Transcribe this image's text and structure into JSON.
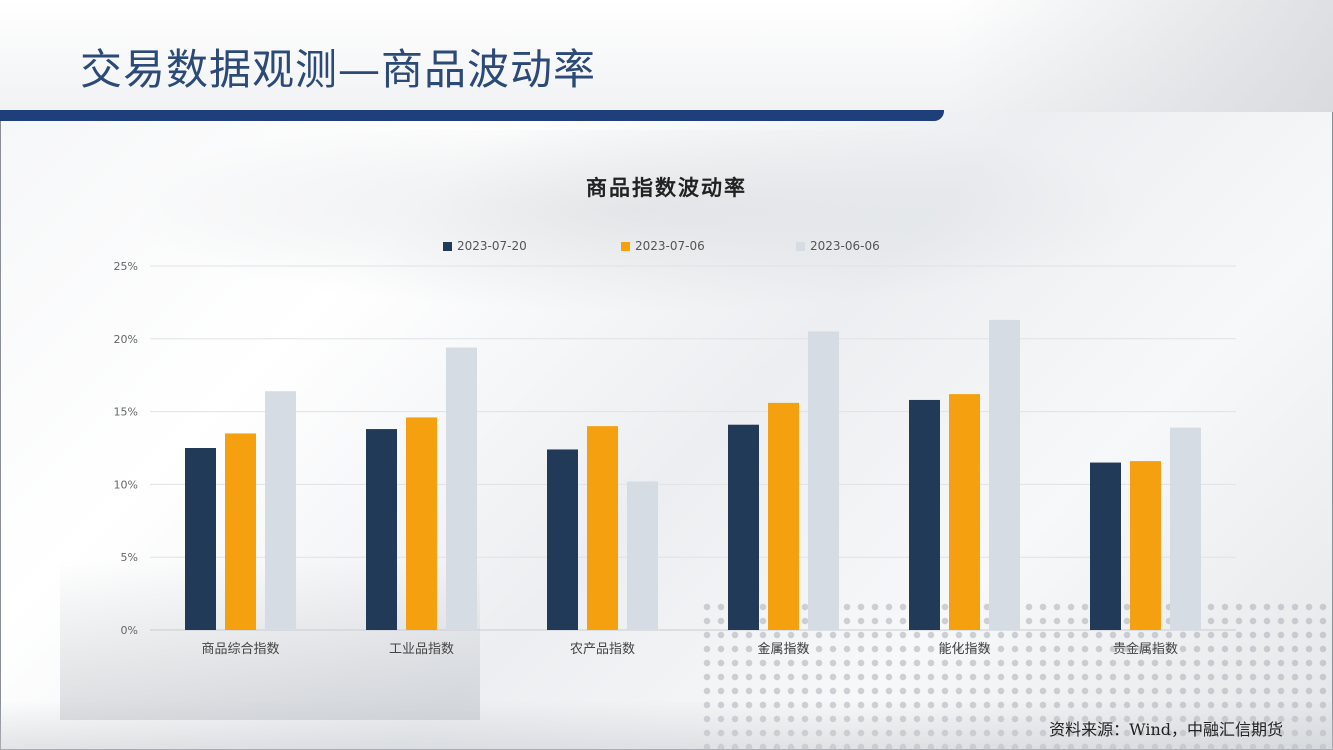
{
  "slide": {
    "title": "交易数据观测—商品波动率",
    "source": "资料来源：Wind，中融汇信期货"
  },
  "colors": {
    "title_bar": "#1f3f7a",
    "title_text": "#2c4a78"
  },
  "chart_data": {
    "type": "bar",
    "title": "商品指数波动率",
    "categories": [
      "商品综合指数",
      "工业品指数",
      "农产品指数",
      "金属指数",
      "能化指数",
      "贵金属指数"
    ],
    "series": [
      {
        "name": "2023-07-20",
        "color": "#203a57",
        "values": [
          12.5,
          13.8,
          12.4,
          14.1,
          15.8,
          11.5
        ]
      },
      {
        "name": "2023-07-06",
        "color": "#f5a00e",
        "values": [
          13.5,
          14.6,
          14.0,
          15.6,
          16.2,
          11.6
        ]
      },
      {
        "name": "2023-06-06",
        "color": "#d6dce4",
        "values": [
          16.4,
          19.4,
          10.2,
          20.5,
          21.3,
          13.9
        ]
      }
    ],
    "y_ticks": [
      "0%",
      "5%",
      "10%",
      "15%",
      "20%",
      "25%"
    ],
    "ylim": [
      0,
      25
    ],
    "grid": true,
    "legend_position": "top"
  }
}
